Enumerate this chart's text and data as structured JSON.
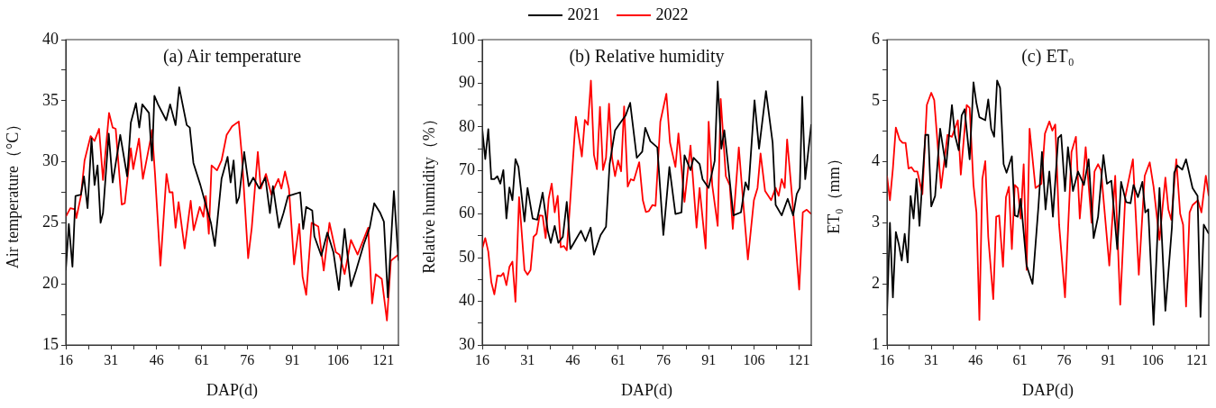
{
  "chart_data": [
    {
      "type": "line",
      "title": "(a) Air temperature",
      "xlabel": "DAP(d)",
      "ylabel": "Air temperature（°C）",
      "legend": "top",
      "grid": false,
      "line_style": "solid",
      "marker": "none",
      "xlim": [
        16,
        126
      ],
      "xticks": [
        16,
        {
          "value": 23.5,
          "label": null
        },
        31,
        {
          "value": 38.5,
          "label": null
        },
        46,
        {
          "value": 53.5,
          "label": null
        },
        61,
        {
          "value": 68.5,
          "label": null
        },
        76,
        {
          "value": 83.5,
          "label": null
        },
        91,
        {
          "value": 98.5,
          "label": null
        },
        106,
        {
          "value": 113.5,
          "label": null
        },
        121
      ],
      "ylim": [
        15,
        40
      ],
      "yticks": [
        15,
        {
          "value": 17.5,
          "label": null
        },
        20,
        {
          "value": 22.5,
          "label": null
        },
        25,
        {
          "value": 27.5,
          "label": null
        },
        30,
        {
          "value": 32.5,
          "label": null
        },
        35,
        {
          "value": 37.5,
          "label": null
        },
        40
      ],
      "series": [
        {
          "name": "2021",
          "color": "#000000",
          "x": [
            16,
            17,
            18.2,
            19.2,
            21,
            22,
            23.2,
            24.5,
            25.5,
            26.5,
            27.5,
            28.3,
            30.2,
            31.5,
            34,
            36.3,
            37.5,
            39.2,
            40.3,
            41.3,
            43.5,
            44.5,
            45.3,
            46.5,
            49.2,
            50.5,
            52.3,
            53.5,
            56,
            57,
            58.2,
            60.5,
            62.5,
            64,
            65.3,
            67.5,
            69.5,
            70.5,
            71.5,
            72.5,
            73.3,
            75,
            76.5,
            78,
            80,
            82,
            83.5,
            84.5,
            86.5,
            88,
            89.5,
            91,
            93.5,
            94.5,
            95.5,
            97.5,
            98.2,
            100.5,
            102.5,
            104.5,
            106.3,
            108.2,
            110.3,
            112,
            114.5,
            116.5,
            118,
            120,
            121.2,
            122.5,
            124.5,
            126
          ],
          "values": [
            21.1,
            24.9,
            21.4,
            27.2,
            27.3,
            28.8,
            26.2,
            31.9,
            28.1,
            29.7,
            25.0,
            25.8,
            32.3,
            28.3,
            32.2,
            28.8,
            33.2,
            34.8,
            32.8,
            34.7,
            34.0,
            30.1,
            35.4,
            34.7,
            33.4,
            34.7,
            33.0,
            36.1,
            33.0,
            32.8,
            29.9,
            28.1,
            26.3,
            25.0,
            23.1,
            28.6,
            30.4,
            28.3,
            30.1,
            26.6,
            27.1,
            30.8,
            28.0,
            28.7,
            27.8,
            28.7,
            25.8,
            28.0,
            24.6,
            25.8,
            27.2,
            27.3,
            27.5,
            24.5,
            26.3,
            26.0,
            23.9,
            22.3,
            24.2,
            22.6,
            19.5,
            24.5,
            19.8,
            21.1,
            23.2,
            24.6,
            26.6,
            25.8,
            25.1,
            18.9,
            27.6,
            21.9
          ]
        },
        {
          "name": "2022",
          "color": "#ff0000",
          "x": [
            16,
            17.5,
            19,
            19.5,
            21,
            22.2,
            24.2,
            25.5,
            27,
            28.3,
            30.3,
            31.5,
            32.5,
            34.5,
            35.5,
            37.5,
            38.3,
            40.2,
            41.5,
            44,
            44.5,
            45.5,
            47.3,
            49.3,
            50.3,
            51.3,
            52.3,
            53.3,
            55.3,
            57.3,
            58.3,
            60.3,
            61.5,
            62.3,
            63.3,
            64.2,
            66,
            67.5,
            69.2,
            71,
            73.2,
            74.2,
            76.3,
            77.5,
            79.5,
            80.5,
            82.2,
            84,
            86.3,
            87.3,
            88.5,
            89.8,
            91.5,
            93.2,
            94.3,
            95.5,
            97.3,
            99.5,
            101.3,
            103.2,
            105.3,
            106.5,
            108.2,
            110.3,
            112.5,
            116,
            117.3,
            118.5,
            120.5,
            122.2,
            123.5,
            126
          ],
          "values": [
            25.5,
            26.2,
            26.1,
            25.4,
            27.2,
            30.1,
            32.1,
            31.7,
            32.7,
            28.5,
            34.0,
            32.8,
            32.7,
            26.5,
            26.6,
            31.1,
            29.4,
            31.9,
            28.6,
            31.8,
            32.6,
            29.0,
            21.5,
            29.0,
            27.5,
            27.5,
            24.6,
            26.7,
            22.9,
            26.8,
            24.4,
            26.3,
            25.5,
            27.2,
            24.1,
            29.7,
            29.3,
            30.1,
            32.2,
            32.9,
            33.3,
            30.6,
            22.1,
            24.6,
            30.8,
            27.8,
            29.0,
            27.3,
            28.6,
            27.8,
            29.2,
            27.8,
            21.6,
            24.9,
            20.6,
            19.1,
            25.0,
            24.7,
            21.1,
            25.0,
            22.6,
            22.4,
            20.8,
            23.6,
            22.4,
            24.6,
            18.4,
            20.8,
            20.4,
            17.0,
            21.9,
            22.4
          ]
        }
      ]
    },
    {
      "type": "line",
      "title": "(b) Relative humidity",
      "xlabel": "DAP(d)",
      "ylabel": "Relative humidity（%）",
      "legend": false,
      "grid": false,
      "line_style": "solid",
      "marker": "none",
      "xlim": [
        16,
        125
      ],
      "xticks": [
        16,
        {
          "value": 23.5,
          "label": null
        },
        31,
        {
          "value": 38.5,
          "label": null
        },
        46,
        {
          "value": 53.5,
          "label": null
        },
        61,
        {
          "value": 68.5,
          "label": null
        },
        76,
        {
          "value": 83.5,
          "label": null
        },
        91,
        {
          "value": 98.5,
          "label": null
        },
        106,
        {
          "value": 113.5,
          "label": null
        },
        121
      ],
      "ylim": [
        30,
        100
      ],
      "yticks": [
        30,
        {
          "value": 35,
          "label": null
        },
        40,
        {
          "value": 45,
          "label": null
        },
        50,
        {
          "value": 55,
          "label": null
        },
        60,
        {
          "value": 65,
          "label": null
        },
        70,
        {
          "value": 75,
          "label": null
        },
        80,
        {
          "value": 85,
          "label": null
        },
        90,
        {
          "value": 95,
          "label": null
        },
        100
      ],
      "series": [
        {
          "color": "#000000",
          "x": [
            16,
            17,
            18,
            19,
            20,
            21,
            22,
            23,
            24,
            25,
            26,
            27,
            28,
            30,
            31,
            32.7,
            34.2,
            36,
            37.7,
            38.7,
            40,
            41.2,
            42.7,
            44,
            45.2,
            46.7,
            48.7,
            50.2,
            51.9,
            53,
            55.2,
            57,
            58.2,
            60,
            61.7,
            63.5,
            65,
            67.2,
            69,
            70,
            71.7,
            74,
            76,
            78,
            80,
            82,
            83,
            85,
            86,
            88,
            89,
            91,
            93,
            94,
            95.2,
            96.2,
            97.4,
            99.2,
            101.7,
            103.2,
            104.2,
            106.2,
            107.7,
            110,
            112.2,
            113.2,
            115.2,
            117.2,
            119,
            120.2,
            121.2,
            122,
            123,
            125
          ],
          "values": [
            79.5,
            72.6,
            79.5,
            68.0,
            68.0,
            68.7,
            67.0,
            70.1,
            59.0,
            66.1,
            63.2,
            72.6,
            70.8,
            58.3,
            66.0,
            59.0,
            58.7,
            64.9,
            56.2,
            53.4,
            57.3,
            53.4,
            54.8,
            62.8,
            52.0,
            53.8,
            56.2,
            53.8,
            56.9,
            50.7,
            55.2,
            57.1,
            71.5,
            79.2,
            80.9,
            82.6,
            85.5,
            72.9,
            74.3,
            79.8,
            76.7,
            75.3,
            55.2,
            70.8,
            60.0,
            60.4,
            73.5,
            70.1,
            72.9,
            71.5,
            68.0,
            66.0,
            72.2,
            90.4,
            75.0,
            79.2,
            71.5,
            59.7,
            60.4,
            67.3,
            65.6,
            86.1,
            75.0,
            88.2,
            76.4,
            62.1,
            59.7,
            63.5,
            59.7,
            64.6,
            66.0,
            86.9,
            68.0,
            80.6
          ]
        },
        {
          "color": "#ff0000",
          "x": [
            16,
            17,
            18,
            19,
            20,
            21,
            22.2,
            23,
            24,
            25,
            26,
            27,
            28.2,
            30,
            31,
            32,
            33,
            34,
            35,
            36,
            37,
            38,
            39,
            40,
            41,
            42,
            43,
            44,
            45,
            47,
            49,
            50,
            51,
            52,
            53,
            54,
            55,
            56,
            57,
            58,
            59,
            60,
            61,
            62,
            63,
            64.2,
            65.2,
            66.2,
            68,
            69.2,
            70.2,
            71.2,
            72.4,
            73.4,
            75,
            77,
            78.2,
            80,
            81,
            83,
            85,
            87,
            88,
            90,
            91,
            92.2,
            94,
            95,
            96.7,
            98,
            99,
            101,
            102,
            104,
            106,
            107.2,
            108.2,
            109.7,
            111.7,
            113.2,
            114.2,
            115.2,
            116.2,
            117,
            118.7,
            121,
            122.2,
            123.5,
            125
          ],
          "values": [
            52.1,
            54.5,
            51.4,
            44.4,
            41.6,
            45.9,
            45.8,
            46.5,
            43.7,
            47.9,
            49.1,
            39.9,
            63.9,
            47.2,
            46.1,
            47.2,
            54.8,
            55.5,
            59.7,
            59.6,
            54.5,
            63.5,
            67.0,
            60.4,
            64.2,
            52.4,
            52.7,
            51.7,
            61.4,
            82.3,
            73.2,
            81.6,
            80.5,
            90.6,
            73.6,
            70.3,
            84.6,
            70.1,
            72.9,
            85.3,
            72.9,
            68.7,
            72.3,
            69.8,
            84.7,
            66.3,
            68.0,
            67.7,
            71.9,
            63.2,
            60.5,
            60.7,
            62.1,
            61.9,
            81.2,
            87.6,
            76.4,
            70.8,
            78.5,
            62.8,
            75.7,
            56.9,
            66.0,
            52.1,
            81.2,
            66.6,
            57.3,
            86.4,
            68.7,
            66.6,
            56.6,
            75.3,
            66.6,
            49.6,
            63.2,
            66.0,
            73.9,
            65.3,
            63.2,
            66.0,
            64.2,
            68.0,
            66.0,
            77.1,
            63.5,
            42.7,
            60.4,
            61.0,
            60.0
          ]
        }
      ]
    },
    {
      "type": "line",
      "title": "(c) ET₀",
      "xlabel": "DAP(d)",
      "ylabel": "ET₀（mm）",
      "legend": false,
      "grid": false,
      "line_style": "solid",
      "marker": "none",
      "xlim": [
        16,
        125
      ],
      "xticks": [
        16,
        {
          "value": 23.5,
          "label": null
        },
        31,
        {
          "value": 38.5,
          "label": null
        },
        46,
        {
          "value": 53.5,
          "label": null
        },
        61,
        {
          "value": 68.5,
          "label": null
        },
        76,
        {
          "value": 83.5,
          "label": null
        },
        91,
        {
          "value": 98.5,
          "label": null
        },
        106,
        {
          "value": 113.5,
          "label": null
        },
        121
      ],
      "ylim": [
        1,
        6
      ],
      "yticks": [
        1,
        {
          "value": 1.5,
          "label": null
        },
        2,
        {
          "value": 2.5,
          "label": null
        },
        3,
        {
          "value": 3.5,
          "label": null
        },
        4,
        {
          "value": 4.5,
          "label": null
        },
        5,
        {
          "value": 5.5,
          "label": null
        },
        6
      ],
      "series": [
        {
          "color": "#000000",
          "x": [
            16,
            17,
            18,
            19,
            20,
            21,
            22,
            23,
            24,
            25,
            26,
            27,
            29,
            30,
            31,
            32.3,
            34,
            36,
            38,
            39,
            40.3,
            41.3,
            42.3,
            44,
            45.3,
            46.3,
            47.3,
            49.3,
            50.3,
            51.3,
            52.3,
            53.3,
            54.3,
            55.5,
            56.5,
            58.3,
            59.3,
            60.3,
            61.3,
            63.3,
            65.3,
            67.3,
            68.5,
            69.7,
            71,
            72.2,
            74,
            75,
            76.3,
            77.3,
            79,
            80.7,
            82.7,
            84.3,
            86,
            87.5,
            89.3,
            90.5,
            92,
            94,
            95.3,
            97,
            98.5,
            99.5,
            101,
            102.5,
            103.5,
            104.5,
            106.3,
            108.3,
            110.3,
            112.5,
            113.3,
            114.3,
            116,
            117.3,
            119.5,
            121.2,
            122.2,
            123.3,
            125
          ],
          "values": [
            1.51,
            3.0,
            1.78,
            2.85,
            2.65,
            2.38,
            2.82,
            2.35,
            3.44,
            3.07,
            3.72,
            2.95,
            4.44,
            4.44,
            3.27,
            3.44,
            4.54,
            3.91,
            4.93,
            4.44,
            4.19,
            4.76,
            4.86,
            4.04,
            5.3,
            4.96,
            4.73,
            4.68,
            5.02,
            4.54,
            4.41,
            5.33,
            5.21,
            3.96,
            3.82,
            4.09,
            3.12,
            3.1,
            3.39,
            2.3,
            2.0,
            3.27,
            4.16,
            3.22,
            3.84,
            3.1,
            4.39,
            4.44,
            3.52,
            4.24,
            3.52,
            3.84,
            3.62,
            4.04,
            2.75,
            3.1,
            4.11,
            3.64,
            3.69,
            2.57,
            3.67,
            3.34,
            3.32,
            3.62,
            3.42,
            3.67,
            3.17,
            3.22,
            1.33,
            3.57,
            1.56,
            2.92,
            3.82,
            3.94,
            3.87,
            4.04,
            3.57,
            3.44,
            1.46,
            2.97,
            2.82
          ]
        },
        {
          "color": "#ff0000",
          "x": [
            16,
            17,
            18,
            19,
            20.3,
            21.3,
            22.3,
            23.3,
            24.3,
            25.3,
            26.3,
            28,
            29.5,
            31,
            32,
            34.3,
            36.5,
            38,
            40,
            41,
            43,
            44,
            45.3,
            46.3,
            47.3,
            48.3,
            49.3,
            50.3,
            52,
            53,
            54,
            55.3,
            56.3,
            57.3,
            58.3,
            59.3,
            60.3,
            61.3,
            62.3,
            63.3,
            64.3,
            66.3,
            68.3,
            69.5,
            71,
            72,
            73,
            74.3,
            76.3,
            78.5,
            80,
            81.3,
            83.3,
            85.3,
            86.3,
            87.5,
            88.5,
            91.3,
            93.3,
            95,
            96.7,
            99.3,
            101.3,
            103.3,
            105,
            106.3,
            108.3,
            110.3,
            111.3,
            112.3,
            114,
            115.3,
            116.3,
            117.3,
            118.5,
            119.5,
            121.3,
            122.5,
            124,
            125
          ],
          "values": [
            3.77,
            3.37,
            3.89,
            4.56,
            4.36,
            4.31,
            4.31,
            3.89,
            3.91,
            3.84,
            3.84,
            3.47,
            4.93,
            5.13,
            5.01,
            3.57,
            4.44,
            4.41,
            4.68,
            3.79,
            4.93,
            4.88,
            3.62,
            3.17,
            1.41,
            3.72,
            4.01,
            2.77,
            1.75,
            3.1,
            3.12,
            2.28,
            3.42,
            3.59,
            2.57,
            3.62,
            3.57,
            3.07,
            3.96,
            2.23,
            4.54,
            3.57,
            3.64,
            4.46,
            4.66,
            4.51,
            4.61,
            2.97,
            1.78,
            4.16,
            4.41,
            3.07,
            4.24,
            3.0,
            3.84,
            3.96,
            3.86,
            2.3,
            3.77,
            1.66,
            3.42,
            4.04,
            2.15,
            3.77,
            3.99,
            3.59,
            2.72,
            3.74,
            3.22,
            3.05,
            4.04,
            3.15,
            2.97,
            1.63,
            3.17,
            3.29,
            3.37,
            3.17,
            3.77,
            3.44
          ]
        }
      ]
    }
  ]
}
